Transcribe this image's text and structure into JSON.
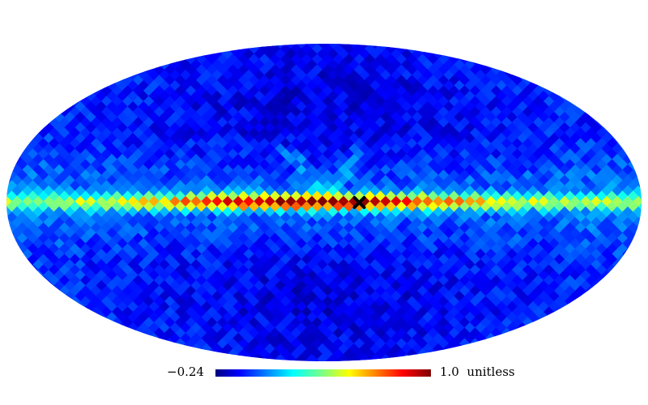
{
  "map": {
    "projection": "mollweide",
    "colormap": "jet",
    "background_color": "#0000ff",
    "band_color_peak": "#ff3c00",
    "marker": {
      "symbol": "x-mark",
      "color": "#000000",
      "lon_deg": -20,
      "lat_deg": 0
    }
  },
  "colorbar": {
    "min_label": "−0.24",
    "max_label": "1.0",
    "unit": "unitless",
    "min_value": -0.24,
    "max_value": 1.0
  }
}
